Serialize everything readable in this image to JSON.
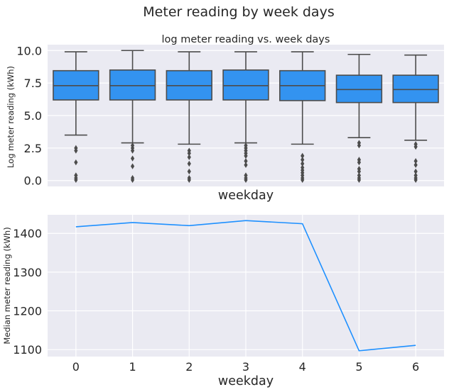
{
  "suptitle": "Meter reading by week days",
  "chart_data": [
    {
      "type": "box",
      "title": "log meter reading vs. week days",
      "xlabel": "weekday",
      "ylabel": "Log meter reading (kWh)",
      "ylim": [
        -0.45,
        10.45
      ],
      "yticks": [
        0.0,
        2.5,
        5.0,
        7.5,
        10.0
      ],
      "ytick_labels": [
        "0.0",
        "2.5",
        "5.0",
        "7.5",
        "10.0"
      ],
      "show_xtick_labels": false,
      "grid": true,
      "box_color": "#3393f0",
      "categories": [
        "0",
        "1",
        "2",
        "3",
        "4",
        "5",
        "6"
      ],
      "boxes": [
        {
          "whislo": 3.5,
          "q1": 6.2,
          "med": 7.3,
          "q3": 8.45,
          "whishi": 9.9,
          "fliers": [
            2.5,
            2.3,
            1.4,
            0.4,
            0.2,
            0.05
          ]
        },
        {
          "whislo": 2.9,
          "q1": 6.2,
          "med": 7.3,
          "q3": 8.5,
          "whishi": 10.0,
          "fliers": [
            2.7,
            2.5,
            2.3,
            1.7,
            1.1,
            0.2,
            0.05
          ]
        },
        {
          "whislo": 2.8,
          "q1": 6.2,
          "med": 7.3,
          "q3": 8.45,
          "whishi": 9.9,
          "fliers": [
            2.3,
            2.1,
            1.8,
            1.3,
            0.7,
            0.2,
            0.05
          ]
        },
        {
          "whislo": 2.9,
          "q1": 6.2,
          "med": 7.3,
          "q3": 8.5,
          "whishi": 9.9,
          "fliers": [
            2.7,
            2.5,
            2.3,
            2.1,
            1.9,
            1.5,
            1.2,
            0.4,
            0.2,
            0.05
          ]
        },
        {
          "whislo": 2.8,
          "q1": 6.15,
          "med": 7.3,
          "q3": 8.45,
          "whishi": 9.9,
          "fliers": [
            1.9,
            1.6,
            1.3,
            1.0,
            0.8,
            0.6,
            0.4,
            0.2,
            0.05
          ]
        },
        {
          "whislo": 3.3,
          "q1": 6.0,
          "med": 7.0,
          "q3": 8.1,
          "whishi": 9.7,
          "fliers": [
            2.9,
            2.7,
            1.6,
            1.4,
            0.9,
            0.7,
            0.4,
            0.2,
            0.05
          ]
        },
        {
          "whislo": 3.1,
          "q1": 6.0,
          "med": 7.0,
          "q3": 8.1,
          "whishi": 9.65,
          "fliers": [
            2.8,
            2.6,
            1.5,
            1.2,
            0.7,
            0.4,
            0.2,
            0.05
          ]
        }
      ]
    },
    {
      "type": "line",
      "xlabel": "weekday",
      "ylabel": "Median meter reading (kWh)",
      "x": [
        0,
        1,
        2,
        3,
        4,
        5,
        6
      ],
      "y": [
        1417,
        1428,
        1420,
        1433,
        1425,
        1097,
        1111
      ],
      "xlim": [
        -0.5,
        6.5
      ],
      "ylim": [
        1082,
        1448
      ],
      "xticks": [
        0,
        1,
        2,
        3,
        4,
        5,
        6
      ],
      "xtick_labels": [
        "0",
        "1",
        "2",
        "3",
        "4",
        "5",
        "6"
      ],
      "yticks": [
        1100,
        1200,
        1300,
        1400
      ],
      "ytick_labels": [
        "1100",
        "1200",
        "1300",
        "1400"
      ],
      "grid": true,
      "line_color": "#1e90ff"
    }
  ]
}
